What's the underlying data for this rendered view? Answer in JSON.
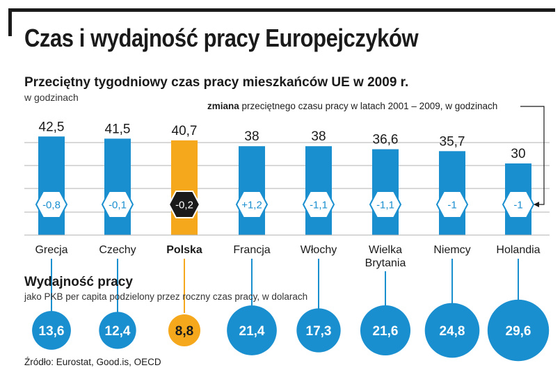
{
  "title": "Czas i wydajność pracy Europejczyków",
  "subtitle": "Przeciętny tygodniowy czas pracy mieszkańców UE w 2009 r.",
  "unit": "w godzinach",
  "change_note_bold": "zmiana",
  "change_note_rest": " przeciętnego czasu pracy w latach 2001 – 2009, w godzinach",
  "productivity_title": "Wydajność pracy",
  "productivity_sub": "jako PKB per capita podzielony przez roczny czas pracy, w dolarach",
  "source": "Źródło: Eurostat, Good.is, OECD",
  "colors": {
    "bar": "#1a8fcf",
    "highlight": "#f5a81c",
    "dark": "#1a1a1a",
    "grid": "#b0b0b0",
    "frame": "#1a1a1a"
  },
  "chart_data": {
    "type": "bar",
    "categories": [
      "Grecja",
      "Czechy",
      "Polska",
      "Francja",
      "Włochy",
      "Wielka Brytania",
      "Niemcy",
      "Holandia"
    ],
    "category_lines": [
      [
        "Grecja"
      ],
      [
        "Czechy"
      ],
      [
        "Polska"
      ],
      [
        "Francja"
      ],
      [
        "Włochy"
      ],
      [
        "Wielka",
        "Brytania"
      ],
      [
        "Niemcy"
      ],
      [
        "Holandia"
      ]
    ],
    "highlight": "Polska",
    "series": [
      {
        "values": [
          42.5,
          41.5,
          40.7,
          38,
          38,
          36.6,
          35.7,
          30
        ],
        "labels": [
          "42,5",
          "41,5",
          "40,7",
          "38",
          "38",
          "36,6",
          "35,7",
          "30"
        ]
      }
    ],
    "change": {
      "values": [
        -0.8,
        -0.1,
        -0.2,
        1.2,
        -1.1,
        -1.1,
        -1,
        -1
      ],
      "labels": [
        "-0,8",
        "-0,1",
        "-0,2",
        "+1,2",
        "-1,1",
        "-1,1",
        "-1",
        "-1"
      ]
    },
    "productivity": {
      "values": [
        13.6,
        12.4,
        8.8,
        21.4,
        17.3,
        21.6,
        24.8,
        29.6
      ],
      "labels": [
        "13,6",
        "12,4",
        "8,8",
        "21,4",
        "17,3",
        "21,6",
        "24,8",
        "29,6"
      ]
    },
    "ylim": [
      0,
      45
    ],
    "grid": true,
    "xlabel": "",
    "ylabel": "w godzinach"
  }
}
